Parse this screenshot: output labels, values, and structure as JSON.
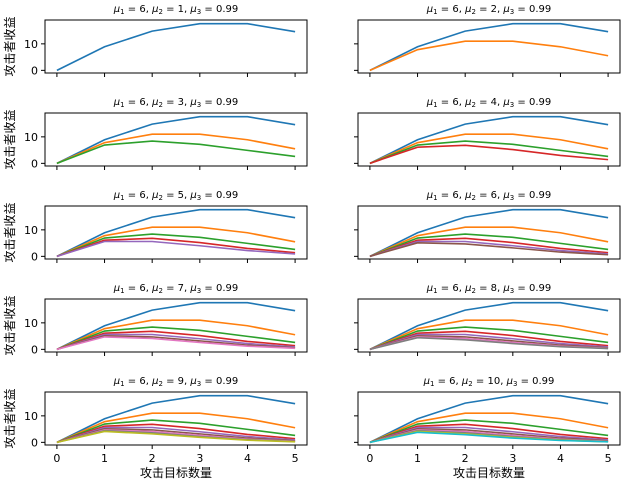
{
  "figure": {
    "ylabel": "攻击者收益",
    "xlabel": "攻击目标数量"
  },
  "chart_data": {
    "type": "line",
    "layout": "5x2 grid of line subplots, shared x and y axes",
    "shared_x": [
      0,
      1,
      2,
      3,
      4,
      5
    ],
    "xticks": [
      "0",
      "1",
      "2",
      "3",
      "4",
      "5"
    ],
    "yticks": [
      "0",
      "10"
    ],
    "ylim": [
      -1,
      19
    ],
    "xlim": [
      -0.25,
      5.25
    ],
    "xlabel": "攻击目标数量",
    "ylabel": "攻击者收益",
    "grid": false,
    "colors": [
      "#1f77b4",
      "#ff7f0e",
      "#2ca02c",
      "#d62728",
      "#9467bd",
      "#8c564b",
      "#e377c2",
      "#7f7f7f",
      "#bcbd22",
      "#17becf"
    ],
    "subplots": [
      {
        "title_parts": [
          "μ",
          "1",
          " = 6, ",
          "μ",
          "2",
          " = 1, ",
          "μ",
          "3",
          " = 0.99"
        ],
        "series": [
          {
            "values": [
              0,
              8.9,
              14.8,
              17.6,
              17.6,
              14.6
            ]
          }
        ]
      },
      {
        "title_parts": [
          "μ",
          "1",
          " = 6, ",
          "μ",
          "2",
          " = 2, ",
          "μ",
          "3",
          " = 0.99"
        ],
        "series": [
          {
            "values": [
              0,
              8.9,
              14.8,
              17.6,
              17.6,
              14.6
            ]
          },
          {
            "values": [
              0,
              7.8,
              11.0,
              11.0,
              8.9,
              5.5
            ]
          }
        ]
      },
      {
        "title_parts": [
          "μ",
          "1",
          " = 6, ",
          "μ",
          "2",
          " = 3, ",
          "μ",
          "3",
          " = 0.99"
        ],
        "series": [
          {
            "values": [
              0,
              8.9,
              14.8,
              17.6,
              17.6,
              14.6
            ]
          },
          {
            "values": [
              0,
              7.8,
              11.0,
              11.0,
              8.9,
              5.5
            ]
          },
          {
            "values": [
              0,
              6.9,
              8.4,
              7.2,
              4.9,
              2.6
            ]
          }
        ]
      },
      {
        "title_parts": [
          "μ",
          "1",
          " = 6, ",
          "μ",
          "2",
          " = 4, ",
          "μ",
          "3",
          " = 0.99"
        ],
        "series": [
          {
            "values": [
              0,
              8.9,
              14.8,
              17.6,
              17.6,
              14.6
            ]
          },
          {
            "values": [
              0,
              7.8,
              11.0,
              11.0,
              8.9,
              5.5
            ]
          },
          {
            "values": [
              0,
              6.9,
              8.4,
              7.2,
              4.9,
              2.6
            ]
          },
          {
            "values": [
              0,
              6.1,
              6.8,
              5.2,
              3.0,
              1.4
            ]
          }
        ]
      },
      {
        "title_parts": [
          "μ",
          "1",
          " = 6, ",
          "μ",
          "2",
          " = 5, ",
          "μ",
          "3",
          " = 0.99"
        ],
        "series": [
          {
            "values": [
              0,
              8.9,
              14.8,
              17.6,
              17.6,
              14.6
            ]
          },
          {
            "values": [
              0,
              7.8,
              11.0,
              11.0,
              8.9,
              5.5
            ]
          },
          {
            "values": [
              0,
              6.9,
              8.4,
              7.2,
              4.9,
              2.6
            ]
          },
          {
            "values": [
              0,
              6.1,
              6.8,
              5.2,
              3.0,
              1.4
            ]
          },
          {
            "values": [
              0,
              5.6,
              5.6,
              4.0,
              2.2,
              0.9
            ]
          }
        ]
      },
      {
        "title_parts": [
          "μ",
          "1",
          " = 6, ",
          "μ",
          "2",
          " = 6, ",
          "μ",
          "3",
          " = 0.99"
        ],
        "series": [
          {
            "values": [
              0,
              8.9,
              14.8,
              17.6,
              17.6,
              14.6
            ]
          },
          {
            "values": [
              0,
              7.8,
              11.0,
              11.0,
              8.9,
              5.5
            ]
          },
          {
            "values": [
              0,
              6.9,
              8.4,
              7.2,
              4.9,
              2.6
            ]
          },
          {
            "values": [
              0,
              6.1,
              6.8,
              5.2,
              3.0,
              1.4
            ]
          },
          {
            "values": [
              0,
              5.6,
              5.6,
              4.0,
              2.2,
              0.9
            ]
          },
          {
            "values": [
              0,
              5.1,
              4.7,
              3.2,
              1.6,
              0.6
            ]
          }
        ]
      },
      {
        "title_parts": [
          "μ",
          "1",
          " = 6, ",
          "μ",
          "2",
          " = 7, ",
          "μ",
          "3",
          " = 0.99"
        ],
        "series": [
          {
            "values": [
              0,
              8.9,
              14.8,
              17.6,
              17.6,
              14.6
            ]
          },
          {
            "values": [
              0,
              7.8,
              11.0,
              11.0,
              8.9,
              5.5
            ]
          },
          {
            "values": [
              0,
              6.9,
              8.4,
              7.2,
              4.9,
              2.6
            ]
          },
          {
            "values": [
              0,
              6.1,
              6.8,
              5.2,
              3.0,
              1.4
            ]
          },
          {
            "values": [
              0,
              5.6,
              5.6,
              4.0,
              2.2,
              0.9
            ]
          },
          {
            "values": [
              0,
              5.1,
              4.7,
              3.2,
              1.6,
              0.6
            ]
          },
          {
            "values": [
              0,
              4.7,
              4.1,
              2.6,
              1.2,
              0.4
            ]
          }
        ]
      },
      {
        "title_parts": [
          "μ",
          "1",
          " = 6, ",
          "μ",
          "2",
          " = 8, ",
          "μ",
          "3",
          " = 0.99"
        ],
        "series": [
          {
            "values": [
              0,
              8.9,
              14.8,
              17.6,
              17.6,
              14.6
            ]
          },
          {
            "values": [
              0,
              7.8,
              11.0,
              11.0,
              8.9,
              5.5
            ]
          },
          {
            "values": [
              0,
              6.9,
              8.4,
              7.2,
              4.9,
              2.6
            ]
          },
          {
            "values": [
              0,
              6.1,
              6.8,
              5.2,
              3.0,
              1.4
            ]
          },
          {
            "values": [
              0,
              5.6,
              5.6,
              4.0,
              2.2,
              0.9
            ]
          },
          {
            "values": [
              0,
              5.1,
              4.7,
              3.2,
              1.6,
              0.6
            ]
          },
          {
            "values": [
              0,
              4.7,
              4.1,
              2.6,
              1.2,
              0.4
            ]
          },
          {
            "values": [
              0,
              4.4,
              3.6,
              2.2,
              1.0,
              0.3
            ]
          }
        ]
      },
      {
        "title_parts": [
          "μ",
          "1",
          " = 6, ",
          "μ",
          "2",
          " = 9, ",
          "μ",
          "3",
          " = 0.99"
        ],
        "series": [
          {
            "values": [
              0,
              8.9,
              14.8,
              17.6,
              17.6,
              14.6
            ]
          },
          {
            "values": [
              0,
              7.8,
              11.0,
              11.0,
              8.9,
              5.5
            ]
          },
          {
            "values": [
              0,
              6.9,
              8.4,
              7.2,
              4.9,
              2.6
            ]
          },
          {
            "values": [
              0,
              6.1,
              6.8,
              5.2,
              3.0,
              1.4
            ]
          },
          {
            "values": [
              0,
              5.6,
              5.6,
              4.0,
              2.2,
              0.9
            ]
          },
          {
            "values": [
              0,
              5.1,
              4.7,
              3.2,
              1.6,
              0.6
            ]
          },
          {
            "values": [
              0,
              4.7,
              4.1,
              2.6,
              1.2,
              0.4
            ]
          },
          {
            "values": [
              0,
              4.4,
              3.6,
              2.2,
              1.0,
              0.3
            ]
          },
          {
            "values": [
              0,
              4.1,
              3.2,
              1.9,
              0.8,
              0.2
            ]
          }
        ]
      },
      {
        "title_parts": [
          "μ",
          "1",
          " = 6, ",
          "μ",
          "2",
          " = 10, ",
          "μ",
          "3",
          " = 0.99"
        ],
        "series": [
          {
            "values": [
              0,
              8.9,
              14.8,
              17.6,
              17.6,
              14.6
            ]
          },
          {
            "values": [
              0,
              7.8,
              11.0,
              11.0,
              8.9,
              5.5
            ]
          },
          {
            "values": [
              0,
              6.9,
              8.4,
              7.2,
              4.9,
              2.6
            ]
          },
          {
            "values": [
              0,
              6.1,
              6.8,
              5.2,
              3.0,
              1.4
            ]
          },
          {
            "values": [
              0,
              5.6,
              5.6,
              4.0,
              2.2,
              0.9
            ]
          },
          {
            "values": [
              0,
              5.1,
              4.7,
              3.2,
              1.6,
              0.6
            ]
          },
          {
            "values": [
              0,
              4.7,
              4.1,
              2.6,
              1.2,
              0.4
            ]
          },
          {
            "values": [
              0,
              4.4,
              3.6,
              2.2,
              1.0,
              0.3
            ]
          },
          {
            "values": [
              0,
              4.1,
              3.2,
              1.9,
              0.8,
              0.2
            ]
          },
          {
            "values": [
              0,
              3.8,
              2.9,
              1.6,
              0.7,
              0.2
            ]
          }
        ]
      }
    ]
  }
}
